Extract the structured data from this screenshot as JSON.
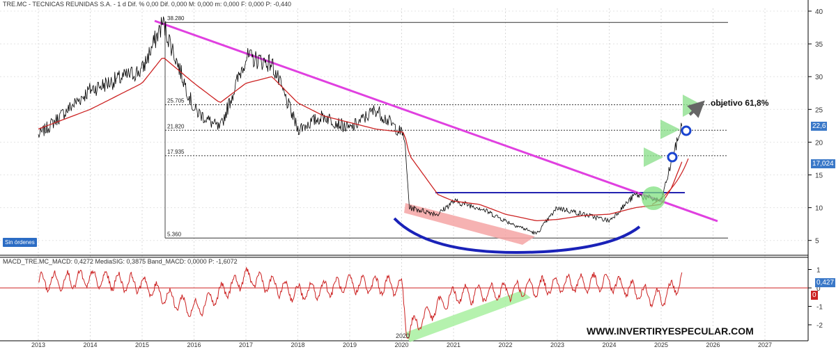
{
  "price_panel": {
    "header": "TRE.MC - TECNICAS REUNIDAS S.A. - 1 d Dif. % 0,00 Dif. 0,000 M: 0,000 m: 0,000 F: 0,000 P: -0,440",
    "badge": "Sin órdenes",
    "y_ticks": [
      "40",
      "35",
      "30",
      "25",
      "20",
      "15",
      "10",
      "5"
    ],
    "levels": [
      {
        "label": "38.280",
        "value": 38.28,
        "style": "solid"
      },
      {
        "label": "25.705",
        "value": 25.705,
        "style": "dotted"
      },
      {
        "label": "21.820",
        "value": 21.82,
        "style": "dotted"
      },
      {
        "label": "17.935",
        "value": 17.935,
        "style": "dotted"
      },
      {
        "label": "5.360",
        "value": 5.36,
        "style": "solid"
      }
    ],
    "annotation": "objetivo 61,8%",
    "last_price_box_1": "22,6",
    "last_price_box_2": "17,024",
    "colors": {
      "price": "#000000",
      "ma": "#cc2222",
      "trendline": "#e040e0",
      "resistance": "#2323b0",
      "accent": "#3a78c8"
    }
  },
  "macd_panel": {
    "header": "MACD_TRE.MC_MACD: 0,4272 MediaSIG: 0,3875 Band_MACD: 0,0000 P: -1,6072",
    "y_ticks": [
      "1",
      "0",
      "-1",
      "-2"
    ],
    "value_box": "0,427",
    "zero_box": "0",
    "low_label": "2020"
  },
  "x_axis": {
    "years": [
      "2013",
      "2014",
      "2015",
      "2016",
      "2017",
      "2018",
      "2019",
      "2020",
      "2021",
      "2022",
      "2023",
      "2024",
      "2025",
      "2026",
      "2027"
    ]
  },
  "watermark": "WWW.INVERTIRYESPECULAR.COM",
  "chart_data": [
    {
      "type": "line",
      "title": "TRE.MC - TECNICAS REUNIDAS S.A.",
      "xlabel": "",
      "ylabel": "",
      "x": [
        "2013",
        "2014",
        "2015",
        "2015.4",
        "2016",
        "2016.5",
        "2017",
        "2017.5",
        "2018",
        "2018.5",
        "2019",
        "2019.5",
        "2020.05",
        "2020.15",
        "2020.7",
        "2021",
        "2021.5",
        "2022",
        "2022.6",
        "2023",
        "2023.5",
        "2024",
        "2024.5",
        "2025",
        "2025.2",
        "2025.4"
      ],
      "series": [
        {
          "name": "",
          "values": [
            21,
            28,
            31,
            38.3,
            25,
            22,
            33,
            32,
            22,
            24,
            22,
            25,
            21,
            10,
            9,
            11,
            10,
            8,
            6,
            10,
            9,
            8,
            12,
            11,
            17,
            22.6
          ]
        },
        {
          "name": "",
          "values": [
            22,
            25,
            29,
            33,
            29,
            26,
            29,
            30,
            26,
            24,
            23,
            22,
            21.5,
            18,
            12,
            11,
            10.5,
            9,
            8,
            8.2,
            8.8,
            9,
            10,
            10.5,
            13,
            17
          ]
        }
      ],
      "reference_levels": [
        38.28,
        25.705,
        21.82,
        17.935,
        5.36
      ],
      "ylim": [
        3,
        41
      ],
      "scale": "linear",
      "grid": true
    },
    {
      "type": "line",
      "title": "MACD_TRE.MC",
      "x": [
        "2013",
        "2014",
        "2015",
        "2016",
        "2017",
        "2018",
        "2019",
        "2020",
        "2020.1",
        "2021",
        "2022",
        "2023",
        "2024",
        "2025",
        "2025.4"
      ],
      "series": [
        {
          "name": "",
          "values": [
            0.3,
            0.5,
            0.2,
            -1.2,
            0.6,
            -0.3,
            0.2,
            0.1,
            -2.3,
            -0.4,
            -0.2,
            0.2,
            0.3,
            -0.6,
            0.427
          ]
        }
      ],
      "ylim": [
        -2.5,
        1.4
      ],
      "grid": true
    }
  ]
}
